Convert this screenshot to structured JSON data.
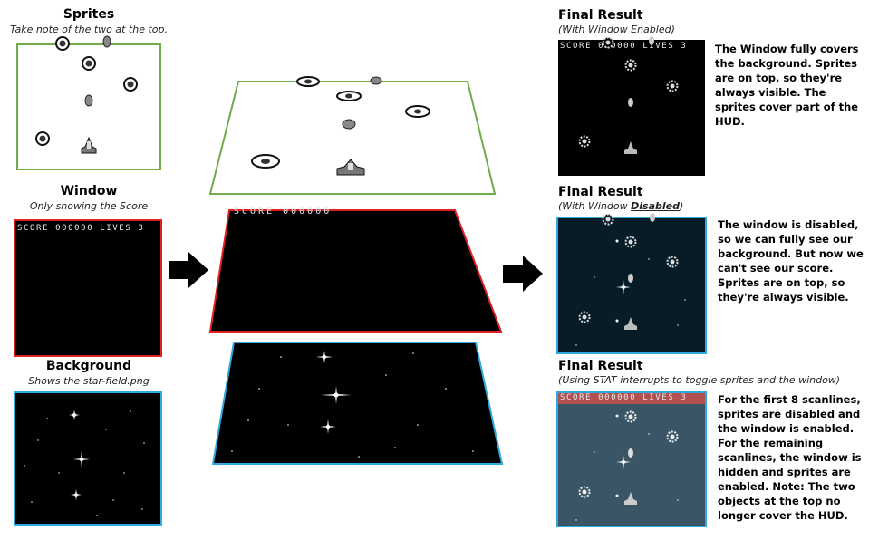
{
  "left": {
    "sprites": {
      "title": "Sprites",
      "subtitle": "Take note of the two at the top."
    },
    "window": {
      "title": "Window",
      "subtitle": "Only showing the Score",
      "hud_text": "SCORE 000000 LIVES 3"
    },
    "background": {
      "title": "Background",
      "subtitle": "Shows the star-field.png"
    }
  },
  "middle": {
    "window_hud_text": "SCORE 000000"
  },
  "right": {
    "result1": {
      "title": "Final Result",
      "subtitle": "(With Window Enabled)",
      "hud_text": "SCORE 000000 LIVES 3",
      "description": "The Window fully covers the background. Sprites are on top, so they're always visible. The sprites cover part of the HUD."
    },
    "result2": {
      "title": "Final Result",
      "subtitle_prefix": "(With Window ",
      "subtitle_emph": "Disabled",
      "subtitle_suffix": ")",
      "description": "The window is disabled, so we can fully see our background. But now we can't see our score. Sprites are on top, so they're always visible."
    },
    "result3": {
      "title": "Final Result",
      "subtitle": "(Using STAT interrupts to toggle sprites and the window)",
      "hud_text": "SCORE 000000 LIVES 3",
      "description": "For the first 8 scanlines, sprites are disabled and the window is enabled. For the remaining scanlines, the window is hidden and sprites are enabled. Note: The two objects at the top no longer cover the HUD."
    }
  },
  "colors": {
    "sprites_border": "#70ad47",
    "window_border": "#e02020",
    "background_border": "#2fa8e0",
    "result2_bg": "#071c26",
    "result3_bg": "#3a5565",
    "result3_hud_bg": "#b05050"
  }
}
